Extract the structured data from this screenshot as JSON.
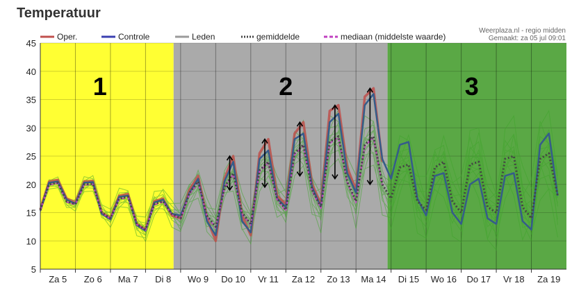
{
  "page": {
    "title": "Temperatuur"
  },
  "credit": {
    "line1": "Weerplaza.nl - regio midden",
    "line2": "Gemaakt: za 05 jul 09:01"
  },
  "legend": [
    {
      "label": "Oper.",
      "color": "#c0504d",
      "style": "solid"
    },
    {
      "label": "Controle",
      "color": "#3a3fb0",
      "style": "solid"
    },
    {
      "label": "Leden",
      "color": "#9a9a9a",
      "style": "solid"
    },
    {
      "label": "gemiddelde",
      "color": "#444444",
      "style": "dotted"
    },
    {
      "label": "mediaan (middelste waarde)",
      "color": "#c040c0",
      "style": "dashed"
    }
  ],
  "zones": [
    {
      "label": "1",
      "from": 0,
      "to": 3.8,
      "color": "#ffff33"
    },
    {
      "label": "2",
      "from": 3.8,
      "to": 9.9,
      "color": "#aaaaaa"
    },
    {
      "label": "3",
      "from": 9.9,
      "to": 15,
      "color": "#5aa845"
    }
  ],
  "chart_data": {
    "type": "line",
    "title": "Temperatuur",
    "xlabel": "",
    "ylabel": "",
    "ylim": [
      5,
      45
    ],
    "yticks": [
      5,
      10,
      15,
      20,
      25,
      30,
      35,
      40,
      45
    ],
    "xlim": [
      0,
      15
    ],
    "categories": [
      "Za 5",
      "Zo 6",
      "Ma 7",
      "Di 8",
      "Wo 9",
      "Do 10",
      "Vr 11",
      "Za 12",
      "Zo 13",
      "Ma 14",
      "Di 15",
      "Wo 16",
      "Do 17",
      "Vr 18",
      "Za 19"
    ],
    "grid": true,
    "series": [
      {
        "name": "Oper.",
        "color": "#c0504d",
        "x": [
          0,
          0.25,
          0.5,
          0.75,
          1.0,
          1.25,
          1.5,
          1.75,
          2.0,
          2.25,
          2.5,
          2.75,
          3.0,
          3.25,
          3.5,
          3.75,
          4.0,
          4.25,
          4.5,
          4.75,
          5.0,
          5.25,
          5.5,
          5.75,
          6.0,
          6.25,
          6.5,
          6.75,
          7.0,
          7.25,
          7.5,
          7.75,
          8.0,
          8.25,
          8.5,
          8.75,
          9.0,
          9.25,
          9.5,
          9.75
        ],
        "values": [
          15.5,
          20.5,
          20.8,
          17.5,
          16.8,
          20.5,
          20.6,
          15.0,
          14.0,
          18.0,
          18.3,
          13.0,
          12.0,
          17.0,
          17.5,
          14.5,
          14.0,
          19.0,
          21.5,
          14.0,
          10.0,
          21.0,
          25.0,
          14.5,
          11.0,
          25.5,
          28.0,
          18.0,
          16.5,
          29.0,
          31.0,
          20.0,
          16.5,
          33.0,
          34.0,
          23.0,
          19.0,
          35.5,
          37.0,
          24.0
        ]
      },
      {
        "name": "Controle",
        "color": "#3a3fb0",
        "x": [
          0,
          0.25,
          0.5,
          0.75,
          1.0,
          1.25,
          1.5,
          1.75,
          2.0,
          2.25,
          2.5,
          2.75,
          3.0,
          3.25,
          3.5,
          3.75,
          4.0,
          4.25,
          4.5,
          4.75,
          5.0,
          5.25,
          5.5,
          5.75,
          6.0,
          6.25,
          6.5,
          6.75,
          7.0,
          7.25,
          7.5,
          7.75,
          8.0,
          8.25,
          8.5,
          8.75,
          9.0,
          9.25,
          9.5,
          9.75,
          10.0,
          10.25,
          10.5,
          10.75,
          11.0,
          11.25,
          11.5,
          11.75,
          12.0,
          12.25,
          12.5,
          12.75,
          13.0,
          13.25,
          13.5,
          13.75,
          14.0,
          14.25,
          14.5,
          14.75
        ],
        "values": [
          15.3,
          20.3,
          20.5,
          17.3,
          16.6,
          20.3,
          20.4,
          14.8,
          13.8,
          17.8,
          18.0,
          12.8,
          11.8,
          16.8,
          17.3,
          14.8,
          14.5,
          18.5,
          21.0,
          13.5,
          11.0,
          20.5,
          24.0,
          13.5,
          11.5,
          24.5,
          26.0,
          17.5,
          16.0,
          28.0,
          29.0,
          19.5,
          16.0,
          31.0,
          32.5,
          22.0,
          18.5,
          34.0,
          36.0,
          24.5,
          21.0,
          27.0,
          27.5,
          17.5,
          14.5,
          21.5,
          22.0,
          15.0,
          13.0,
          20.0,
          21.0,
          14.0,
          13.0,
          21.5,
          22.0,
          13.5,
          12.0,
          27.0,
          29.0,
          18.0
        ]
      },
      {
        "name": "gemiddelde",
        "color": "#444444",
        "x": [
          0,
          0.25,
          0.5,
          0.75,
          1.0,
          1.25,
          1.5,
          1.75,
          2.0,
          2.25,
          2.5,
          2.75,
          3.0,
          3.25,
          3.5,
          3.75,
          4.0,
          4.25,
          4.5,
          4.75,
          5.0,
          5.25,
          5.5,
          5.75,
          6.0,
          6.25,
          6.5,
          6.75,
          7.0,
          7.25,
          7.5,
          7.75,
          8.0,
          8.25,
          8.5,
          8.75,
          9.0,
          9.25,
          9.5,
          9.75,
          10.0,
          10.25,
          10.5,
          10.75,
          11.0,
          11.25,
          11.5,
          11.75,
          12.0,
          12.25,
          12.5,
          12.75,
          13.0,
          13.25,
          13.5,
          13.75,
          14.0,
          14.25,
          14.5,
          14.75
        ],
        "values": [
          15.5,
          20.0,
          20.3,
          17.0,
          16.5,
          20.0,
          20.1,
          15.0,
          14.0,
          17.5,
          17.8,
          13.0,
          12.0,
          16.5,
          17.0,
          14.8,
          14.0,
          18.5,
          20.5,
          14.5,
          12.5,
          19.5,
          22.0,
          15.0,
          13.0,
          22.5,
          24.0,
          17.5,
          15.5,
          25.5,
          27.0,
          19.0,
          16.0,
          27.5,
          28.5,
          20.5,
          17.0,
          27.0,
          28.5,
          20.0,
          17.5,
          23.0,
          23.5,
          17.0,
          15.5,
          23.0,
          24.0,
          17.0,
          15.0,
          23.5,
          24.0,
          16.0,
          15.0,
          24.5,
          25.0,
          16.0,
          14.0,
          24.5,
          25.5,
          18.0
        ]
      },
      {
        "name": "mediaan (middelste waarde)",
        "color": "#c040c0",
        "x": [
          0,
          0.25,
          0.5,
          0.75,
          1.0,
          1.25,
          1.5,
          1.75,
          2.0,
          2.25,
          2.5,
          2.75,
          3.0,
          3.25,
          3.5,
          3.75,
          4.0,
          4.25,
          4.5,
          4.75,
          5.0,
          5.25,
          5.5,
          5.75,
          6.0,
          6.25,
          6.5,
          6.75,
          7.0,
          7.25,
          7.5,
          7.75,
          8.0,
          8.25,
          8.5,
          8.75,
          9.0,
          9.25,
          9.5,
          9.75
        ],
        "values": [
          15.4,
          19.9,
          20.2,
          16.9,
          16.4,
          19.9,
          20.0,
          14.9,
          13.9,
          17.4,
          17.7,
          12.9,
          11.9,
          16.4,
          16.9,
          14.7,
          13.9,
          18.3,
          20.3,
          14.3,
          12.3,
          19.3,
          21.8,
          14.8,
          12.8,
          22.3,
          23.8,
          17.3,
          15.3,
          25.3,
          26.8,
          18.8,
          15.8,
          27.3,
          28.3,
          20.3,
          16.8,
          26.8,
          28.3,
          19.8
        ]
      }
    ],
    "annotations": [
      {
        "label": "1",
        "x": 1.7
      },
      {
        "label": "2",
        "x": 7.0
      },
      {
        "label": "3",
        "x": 12.3
      }
    ]
  }
}
